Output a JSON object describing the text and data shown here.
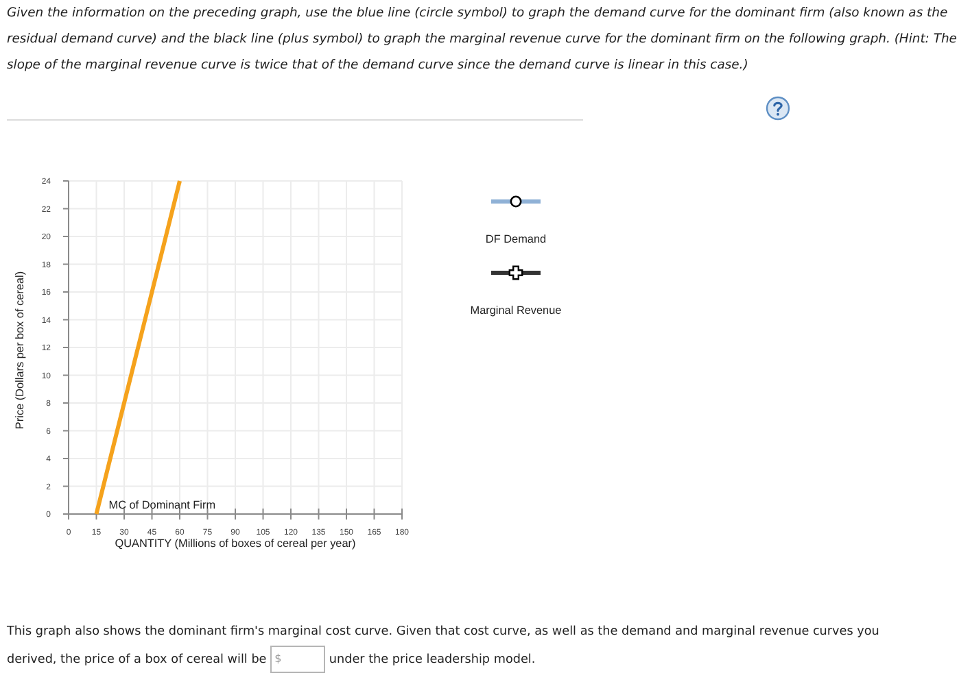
{
  "chart_data": {
    "type": "line",
    "annotations": [
      "Given the information on the preceding graph, use the blue line (circle symbol) to graph the demand curve for the dominant firm (also known as the residual demand curve) and the black line (plus symbol) to graph the marginal revenue curve for the dominant firm on the following graph. (Hint: The slope of the marginal revenue curve is twice that of the demand curve since the demand curve is linear in this case.)",
      "DF Demand",
      "Marginal Revenue",
      "This graph also shows the dominant firm's marginal cost curve. Given that cost curve, as well as the demand and marginal revenue curves you derived, the price of a box of cereal will be",
      "$",
      "under the price leadership model."
    ],
    "xlabel": "QUANTITY (Millions of boxes of cereal per year)",
    "ylabel": "Price (Dollars per box of cereal)",
    "xlim": [
      0,
      180
    ],
    "xticks": [
      0,
      15,
      30,
      45,
      60,
      75,
      90,
      105,
      120,
      135,
      150,
      165,
      180
    ],
    "ylim": [
      0,
      24
    ],
    "yticks": [
      0,
      2,
      4,
      6,
      8,
      10,
      12,
      14,
      16,
      18,
      20,
      22,
      24
    ],
    "grid": true,
    "series": [
      {
        "name": "MC of Dominant Firm",
        "color": "#f5a21c",
        "x": [
          15,
          60
        ],
        "values": [
          0,
          24
        ]
      }
    ]
  }
}
